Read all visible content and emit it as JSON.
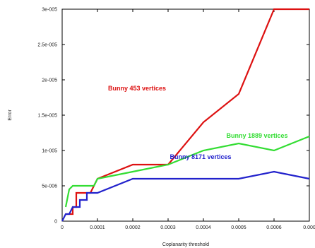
{
  "chart_data": {
    "type": "line",
    "title": "",
    "xlabel": "Coplanarity threshold",
    "ylabel": "Error",
    "xlim": [
      0,
      0.0007
    ],
    "ylim": [
      0,
      3e-05
    ],
    "grid": false,
    "legend": "none",
    "x_ticks": [
      {
        "value": 0,
        "label": "0"
      },
      {
        "value": 0.0001,
        "label": "0.0001"
      },
      {
        "value": 0.0002,
        "label": "0.0002"
      },
      {
        "value": 0.0003,
        "label": "0.0003"
      },
      {
        "value": 0.0004,
        "label": "0.0004"
      },
      {
        "value": 0.0005,
        "label": "0.0005"
      },
      {
        "value": 0.0006,
        "label": "0.0006"
      },
      {
        "value": 0.0007,
        "label": "0.000"
      }
    ],
    "y_ticks": [
      {
        "value": 0,
        "label": "0"
      },
      {
        "value": 5e-06,
        "label": "5e-006"
      },
      {
        "value": 1e-05,
        "label": "1e-005"
      },
      {
        "value": 1.5e-05,
        "label": "1.5e-005"
      },
      {
        "value": 2e-05,
        "label": "2e-005"
      },
      {
        "value": 2.5e-05,
        "label": "2.5e-005"
      },
      {
        "value": 3e-05,
        "label": "3e-005"
      }
    ],
    "series": [
      {
        "name": "Bunny 453 vertices",
        "color": "#dd1111",
        "label_at": [
          0.00013,
          1.85e-05
        ],
        "points": [
          [
            1e-05,
            1e-06
          ],
          [
            3e-05,
            1e-06
          ],
          [
            3e-05,
            2e-06
          ],
          [
            4e-05,
            2e-06
          ],
          [
            4e-05,
            4e-06
          ],
          [
            8e-05,
            4e-06
          ],
          [
            9e-05,
            5e-06
          ],
          [
            0.0001,
            6e-06
          ],
          [
            0.0002,
            8e-06
          ],
          [
            0.0003,
            8e-06
          ],
          [
            0.0004,
            1.4e-05
          ],
          [
            0.0005,
            1.8e-05
          ],
          [
            0.0006,
            3e-05
          ],
          [
            0.0007,
            3e-05
          ]
        ]
      },
      {
        "name": "Bunny 1889 vertices",
        "color": "#33dd33",
        "label_at": [
          0.000465,
          1.18e-05
        ],
        "points": [
          [
            1e-05,
            2e-06
          ],
          [
            2e-05,
            4.5e-06
          ],
          [
            3e-05,
            5e-06
          ],
          [
            9e-05,
            5e-06
          ],
          [
            0.0001,
            6e-06
          ],
          [
            0.0002,
            7e-06
          ],
          [
            0.0003,
            8e-06
          ],
          [
            0.0004,
            1e-05
          ],
          [
            0.0005,
            1.1e-05
          ],
          [
            0.0006,
            1e-05
          ],
          [
            0.0007,
            1.2e-05
          ]
        ]
      },
      {
        "name": "Bunny 8171 vertices",
        "color": "#2222cc",
        "label_at": [
          0.000305,
          8.8e-06
        ],
        "points": [
          [
            0,
            0
          ],
          [
            1e-05,
            1e-06
          ],
          [
            2e-05,
            1e-06
          ],
          [
            3e-05,
            2e-06
          ],
          [
            5e-05,
            2e-06
          ],
          [
            5e-05,
            3e-06
          ],
          [
            7e-05,
            3e-06
          ],
          [
            7e-05,
            4e-06
          ],
          [
            0.0001,
            4e-06
          ],
          [
            0.0002,
            6e-06
          ],
          [
            0.0003,
            6e-06
          ],
          [
            0.0004,
            6e-06
          ],
          [
            0.0005,
            6e-06
          ],
          [
            0.0006,
            7e-06
          ],
          [
            0.0007,
            6e-06
          ]
        ]
      }
    ]
  }
}
